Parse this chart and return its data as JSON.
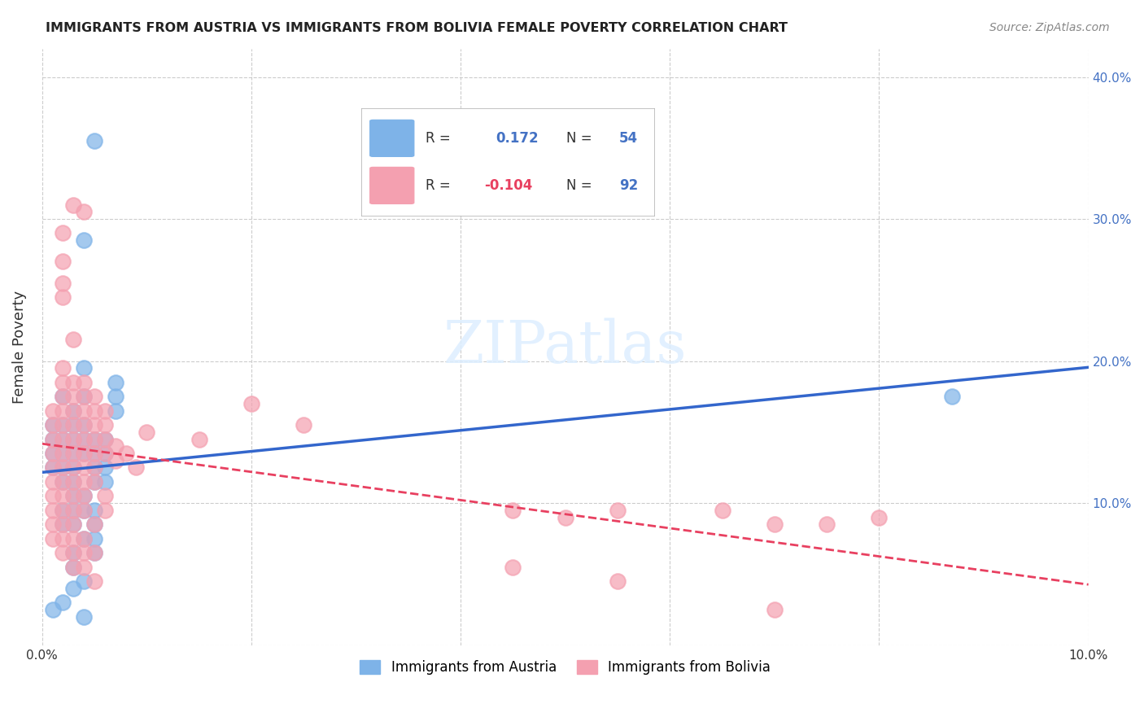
{
  "title": "IMMIGRANTS FROM AUSTRIA VS IMMIGRANTS FROM BOLIVIA FEMALE POVERTY CORRELATION CHART",
  "source": "Source: ZipAtlas.com",
  "ylabel": "Female Poverty",
  "xlim": [
    0.0,
    0.1
  ],
  "ylim": [
    0.0,
    0.42
  ],
  "xticks": [
    0.0,
    0.02,
    0.04,
    0.06,
    0.08,
    0.1
  ],
  "xtick_labels": [
    "0.0%",
    "",
    "",
    "",
    "",
    "10.0%"
  ],
  "yticks": [
    0.0,
    0.1,
    0.2,
    0.3,
    0.4
  ],
  "ytick_labels_right": [
    "",
    "10.0%",
    "20.0%",
    "30.0%",
    "40.0%"
  ],
  "austria_color": "#7EB3E8",
  "bolivia_color": "#F4A0B0",
  "austria_line_color": "#3366CC",
  "bolivia_line_color": "#E84060",
  "background_color": "#FFFFFF",
  "legend_R_austria": "0.172",
  "legend_N_austria": "54",
  "legend_R_bolivia": "-0.104",
  "legend_N_bolivia": "92",
  "austria_scatter": [
    [
      0.001,
      0.155
    ],
    [
      0.001,
      0.145
    ],
    [
      0.001,
      0.135
    ],
    [
      0.001,
      0.125
    ],
    [
      0.002,
      0.175
    ],
    [
      0.002,
      0.155
    ],
    [
      0.002,
      0.145
    ],
    [
      0.002,
      0.135
    ],
    [
      0.002,
      0.125
    ],
    [
      0.002,
      0.115
    ],
    [
      0.002,
      0.095
    ],
    [
      0.002,
      0.085
    ],
    [
      0.003,
      0.165
    ],
    [
      0.003,
      0.155
    ],
    [
      0.003,
      0.145
    ],
    [
      0.003,
      0.135
    ],
    [
      0.003,
      0.125
    ],
    [
      0.003,
      0.115
    ],
    [
      0.003,
      0.105
    ],
    [
      0.003,
      0.095
    ],
    [
      0.003,
      0.085
    ],
    [
      0.003,
      0.065
    ],
    [
      0.003,
      0.055
    ],
    [
      0.004,
      0.285
    ],
    [
      0.004,
      0.195
    ],
    [
      0.004,
      0.175
    ],
    [
      0.004,
      0.155
    ],
    [
      0.004,
      0.145
    ],
    [
      0.004,
      0.135
    ],
    [
      0.004,
      0.105
    ],
    [
      0.004,
      0.095
    ],
    [
      0.004,
      0.075
    ],
    [
      0.004,
      0.045
    ],
    [
      0.005,
      0.355
    ],
    [
      0.005,
      0.145
    ],
    [
      0.005,
      0.135
    ],
    [
      0.005,
      0.125
    ],
    [
      0.005,
      0.115
    ],
    [
      0.005,
      0.095
    ],
    [
      0.005,
      0.085
    ],
    [
      0.005,
      0.075
    ],
    [
      0.005,
      0.065
    ],
    [
      0.006,
      0.145
    ],
    [
      0.006,
      0.135
    ],
    [
      0.006,
      0.125
    ],
    [
      0.006,
      0.115
    ],
    [
      0.007,
      0.185
    ],
    [
      0.007,
      0.175
    ],
    [
      0.007,
      0.165
    ],
    [
      0.087,
      0.175
    ],
    [
      0.001,
      0.025
    ],
    [
      0.002,
      0.03
    ],
    [
      0.003,
      0.04
    ],
    [
      0.004,
      0.02
    ]
  ],
  "bolivia_scatter": [
    [
      0.001,
      0.165
    ],
    [
      0.001,
      0.155
    ],
    [
      0.001,
      0.145
    ],
    [
      0.001,
      0.135
    ],
    [
      0.001,
      0.125
    ],
    [
      0.001,
      0.115
    ],
    [
      0.001,
      0.105
    ],
    [
      0.001,
      0.095
    ],
    [
      0.001,
      0.085
    ],
    [
      0.001,
      0.075
    ],
    [
      0.002,
      0.29
    ],
    [
      0.002,
      0.27
    ],
    [
      0.002,
      0.255
    ],
    [
      0.002,
      0.245
    ],
    [
      0.002,
      0.195
    ],
    [
      0.002,
      0.185
    ],
    [
      0.002,
      0.175
    ],
    [
      0.002,
      0.165
    ],
    [
      0.002,
      0.155
    ],
    [
      0.002,
      0.145
    ],
    [
      0.002,
      0.135
    ],
    [
      0.002,
      0.125
    ],
    [
      0.002,
      0.115
    ],
    [
      0.002,
      0.105
    ],
    [
      0.002,
      0.095
    ],
    [
      0.002,
      0.085
    ],
    [
      0.002,
      0.075
    ],
    [
      0.002,
      0.065
    ],
    [
      0.003,
      0.31
    ],
    [
      0.003,
      0.215
    ],
    [
      0.003,
      0.185
    ],
    [
      0.003,
      0.175
    ],
    [
      0.003,
      0.165
    ],
    [
      0.003,
      0.155
    ],
    [
      0.003,
      0.145
    ],
    [
      0.003,
      0.135
    ],
    [
      0.003,
      0.125
    ],
    [
      0.003,
      0.115
    ],
    [
      0.003,
      0.105
    ],
    [
      0.003,
      0.095
    ],
    [
      0.003,
      0.085
    ],
    [
      0.003,
      0.075
    ],
    [
      0.003,
      0.065
    ],
    [
      0.003,
      0.055
    ],
    [
      0.004,
      0.305
    ],
    [
      0.004,
      0.185
    ],
    [
      0.004,
      0.175
    ],
    [
      0.004,
      0.165
    ],
    [
      0.004,
      0.155
    ],
    [
      0.004,
      0.145
    ],
    [
      0.004,
      0.135
    ],
    [
      0.004,
      0.125
    ],
    [
      0.004,
      0.115
    ],
    [
      0.004,
      0.105
    ],
    [
      0.004,
      0.095
    ],
    [
      0.004,
      0.075
    ],
    [
      0.004,
      0.065
    ],
    [
      0.004,
      0.055
    ],
    [
      0.005,
      0.175
    ],
    [
      0.005,
      0.165
    ],
    [
      0.005,
      0.155
    ],
    [
      0.005,
      0.145
    ],
    [
      0.005,
      0.135
    ],
    [
      0.005,
      0.125
    ],
    [
      0.005,
      0.115
    ],
    [
      0.005,
      0.085
    ],
    [
      0.005,
      0.065
    ],
    [
      0.005,
      0.045
    ],
    [
      0.006,
      0.165
    ],
    [
      0.006,
      0.155
    ],
    [
      0.006,
      0.145
    ],
    [
      0.006,
      0.135
    ],
    [
      0.006,
      0.105
    ],
    [
      0.006,
      0.095
    ],
    [
      0.045,
      0.095
    ],
    [
      0.05,
      0.09
    ],
    [
      0.055,
      0.095
    ],
    [
      0.065,
      0.095
    ],
    [
      0.07,
      0.085
    ],
    [
      0.075,
      0.085
    ],
    [
      0.08,
      0.09
    ],
    [
      0.045,
      0.055
    ],
    [
      0.055,
      0.045
    ],
    [
      0.07,
      0.025
    ],
    [
      0.007,
      0.14
    ],
    [
      0.007,
      0.13
    ],
    [
      0.008,
      0.135
    ],
    [
      0.009,
      0.125
    ],
    [
      0.01,
      0.15
    ],
    [
      0.015,
      0.145
    ],
    [
      0.02,
      0.17
    ],
    [
      0.025,
      0.155
    ]
  ]
}
